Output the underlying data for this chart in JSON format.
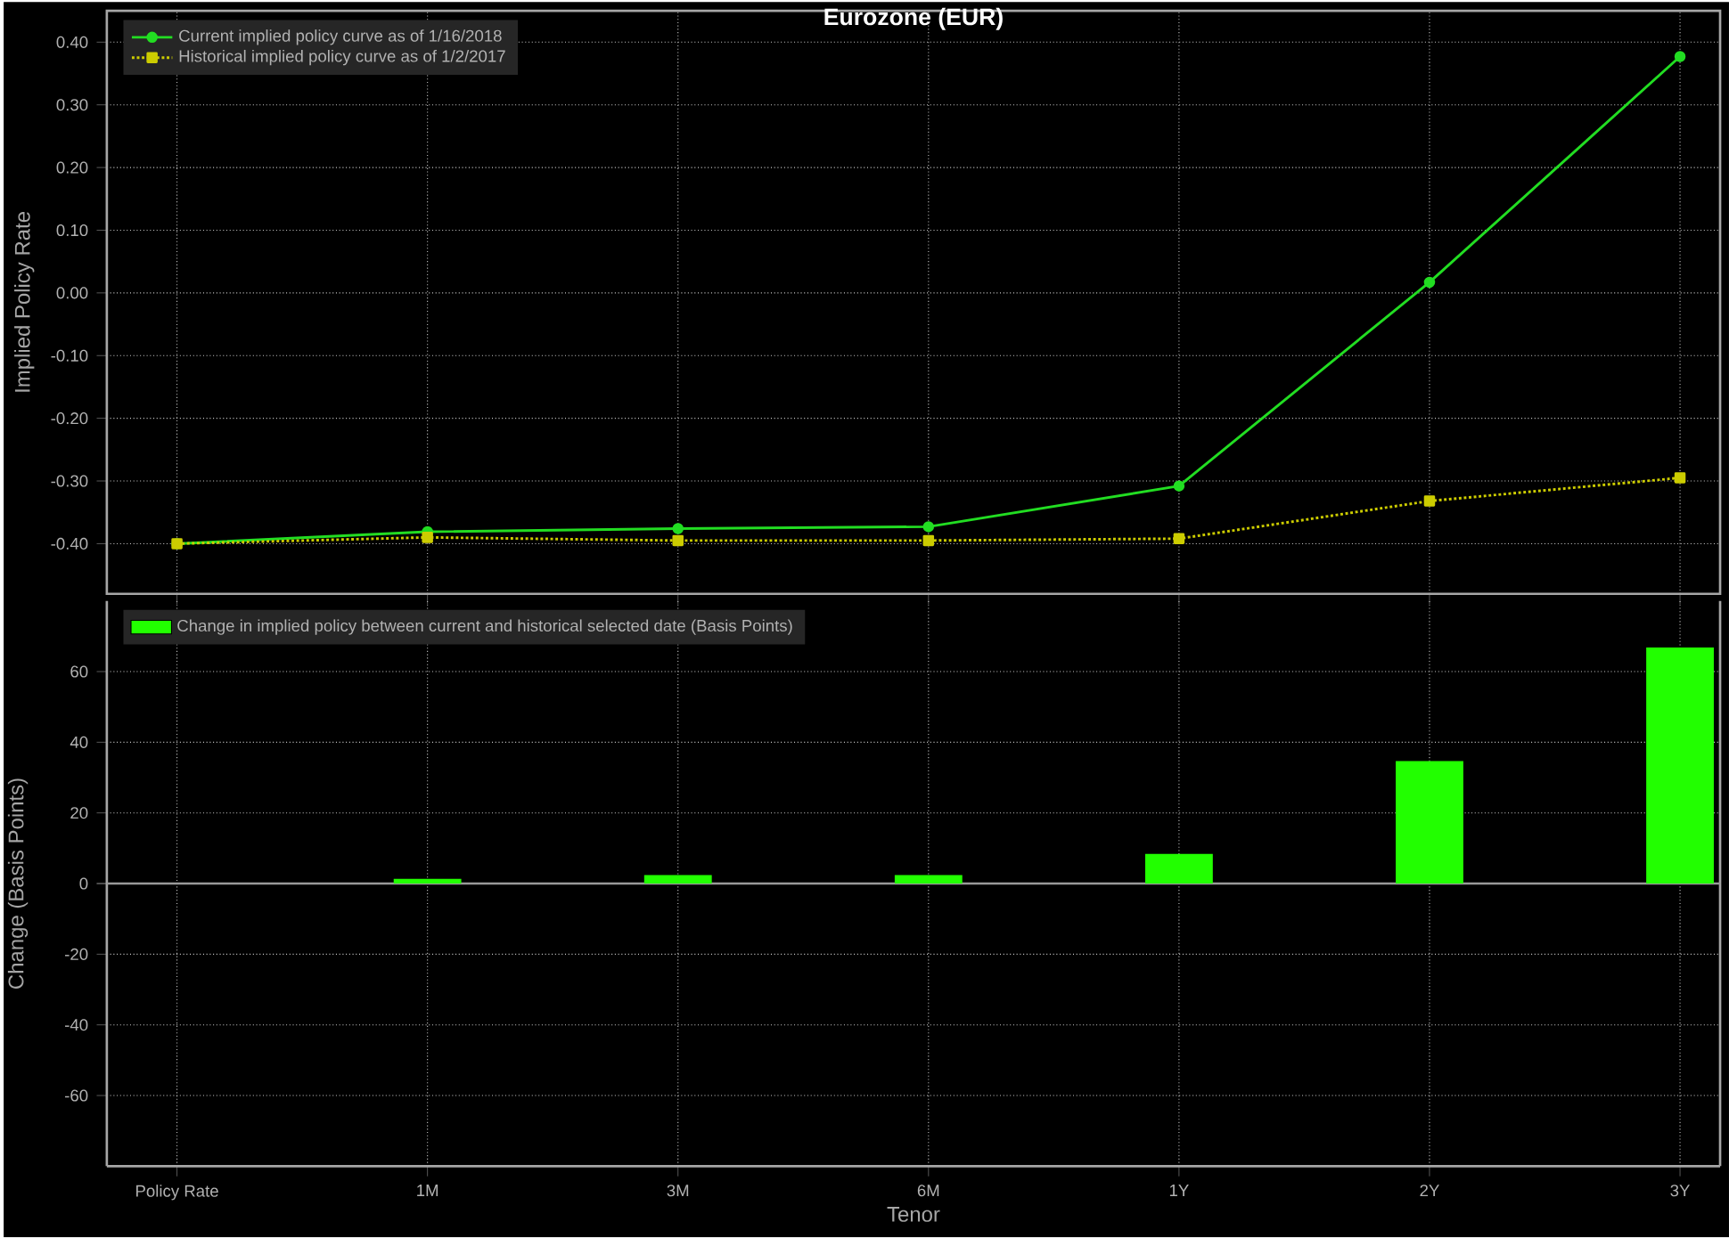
{
  "chart_data": [
    {
      "type": "line",
      "title": "Eurozone (EUR)",
      "ylabel": "Implied Policy Rate",
      "categories": [
        null,
        null,
        null,
        null,
        null,
        null,
        null
      ],
      "series": [
        {
          "name": "Current implied policy curve as of 1/16/2018",
          "color": "#22dd22",
          "marker": "circle",
          "line_style": "solid",
          "values": [
            -0.4,
            -0.381,
            -0.376,
            -0.373,
            -0.308,
            0.017,
            0.377
          ]
        },
        {
          "name": "Historical implied policy curve as of 1/2/2017",
          "color": "#cccc00",
          "marker": "square",
          "line_style": "dotted",
          "values": [
            -0.4,
            -0.39,
            -0.395,
            -0.395,
            -0.392,
            -0.332,
            -0.295
          ]
        }
      ],
      "ylim": [
        -0.48,
        0.45
      ],
      "yticks": [
        {
          "value": -0.4,
          "label": "-0.40"
        },
        {
          "value": -0.3,
          "label": "-0.30"
        },
        {
          "value": -0.2,
          "label": "-0.20"
        },
        {
          "value": -0.1,
          "label": "-0.10"
        },
        {
          "value": 0,
          "label": "0.00"
        },
        {
          "value": 0.1,
          "label": "0.10"
        },
        {
          "value": 0.2,
          "label": "0.20"
        },
        {
          "value": 0.3,
          "label": "0.30"
        },
        {
          "value": 0.4,
          "label": "0.40"
        }
      ],
      "grid": true,
      "legend": "top left",
      "tick_labels": "y"
    },
    {
      "type": "bar",
      "xlabel": "Tenor",
      "ylabel": "Change (Basis Points)",
      "categories": [
        "Policy Rate",
        "1M",
        "3M",
        "6M",
        "1Y",
        "2Y",
        "3Y"
      ],
      "series": [
        {
          "name": "Change in implied policy between current and historical selected date (Basis Points)",
          "color": "#22ff00",
          "values": [
            0,
            1.3,
            2.4,
            2.4,
            8.4,
            34.7,
            66.8
          ]
        }
      ],
      "ylim": [
        -80,
        80
      ],
      "yticks": [
        -60,
        -40,
        -20,
        0,
        20,
        40,
        60
      ],
      "grid": true,
      "legend": "top left"
    }
  ]
}
